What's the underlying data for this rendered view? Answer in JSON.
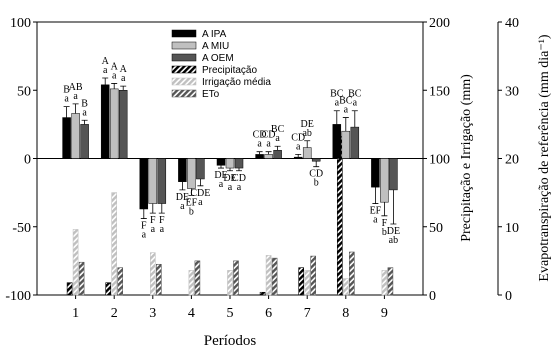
{
  "chart_data": {
    "type": "bar",
    "x_label": "Períodos",
    "categories": [
      "1",
      "2",
      "3",
      "4",
      "5",
      "6",
      "7",
      "8",
      "9"
    ],
    "ylim": [
      -100,
      100
    ],
    "yticks": [
      -100,
      -50,
      0,
      50,
      100
    ],
    "y2lim": [
      0,
      200
    ],
    "y2ticks": [
      0,
      50,
      100,
      150,
      200
    ],
    "y2_label": "Precipitação e Irrigação (mm)",
    "y3lim": [
      0,
      40
    ],
    "y3ticks": [
      0,
      10,
      20,
      30,
      40
    ],
    "y3_label": "Evapotranspiração de referência (mm dia⁻¹)",
    "series": [
      {
        "name": "A IPA",
        "color": "#000000",
        "axis": "y",
        "values": [
          30,
          54,
          -37,
          -17,
          -5,
          3,
          1,
          25,
          -21
        ],
        "errors": [
          8,
          5,
          7,
          6,
          2,
          2,
          2,
          10,
          12
        ],
        "upper_letters": [
          "B",
          "A",
          "F",
          "DE",
          "DE",
          "CD",
          "CD",
          "BC",
          "EF"
        ],
        "lower_letters": [
          "a",
          "a",
          "a",
          "a",
          "a",
          "a",
          "a",
          "a",
          "a"
        ]
      },
      {
        "name": "A MIU",
        "color": "#c0c0c0",
        "axis": "y",
        "values": [
          33,
          51,
          -33,
          -22,
          -7,
          3,
          8,
          20,
          -32
        ],
        "errors": [
          7,
          4,
          7,
          5,
          2,
          2,
          5,
          10,
          10
        ],
        "upper_letters": [
          "AB",
          "A",
          "F",
          "EF",
          "DE",
          "CD",
          "DE",
          "BC",
          "F"
        ],
        "lower_letters": [
          "a",
          "a",
          "a",
          "b",
          "a",
          "a",
          "ab",
          "a",
          "b"
        ]
      },
      {
        "name": "A OEM",
        "color": "#555555",
        "axis": "y",
        "values": [
          25,
          50,
          -33,
          -15,
          -7,
          6,
          -2,
          23,
          -23
        ],
        "errors": [
          3,
          3,
          7,
          5,
          2,
          3,
          4,
          12,
          25
        ],
        "upper_letters": [
          "B",
          "A",
          "F",
          "CDE",
          "CD",
          "BC",
          "CD",
          "BC",
          "DE"
        ],
        "lower_letters": [
          "a",
          "a",
          "a",
          "a",
          "a",
          "a",
          "b",
          "a",
          "ab"
        ]
      },
      {
        "name": "Precipitação",
        "color": "#000000",
        "axis": "y2",
        "values": [
          9,
          9,
          0,
          0,
          0,
          2,
          20,
          116,
          0
        ]
      },
      {
        "name": "Irrigação média",
        "color": "#c0c0c0",
        "axis": "y2",
        "values": [
          48,
          75,
          31,
          18,
          18,
          29,
          18,
          12,
          18
        ]
      },
      {
        "name": "ETo",
        "color": "#555555",
        "axis": "y3",
        "values": [
          4.8,
          4,
          4.5,
          5,
          5,
          5.4,
          5.7,
          6.3,
          4
        ]
      }
    ]
  }
}
